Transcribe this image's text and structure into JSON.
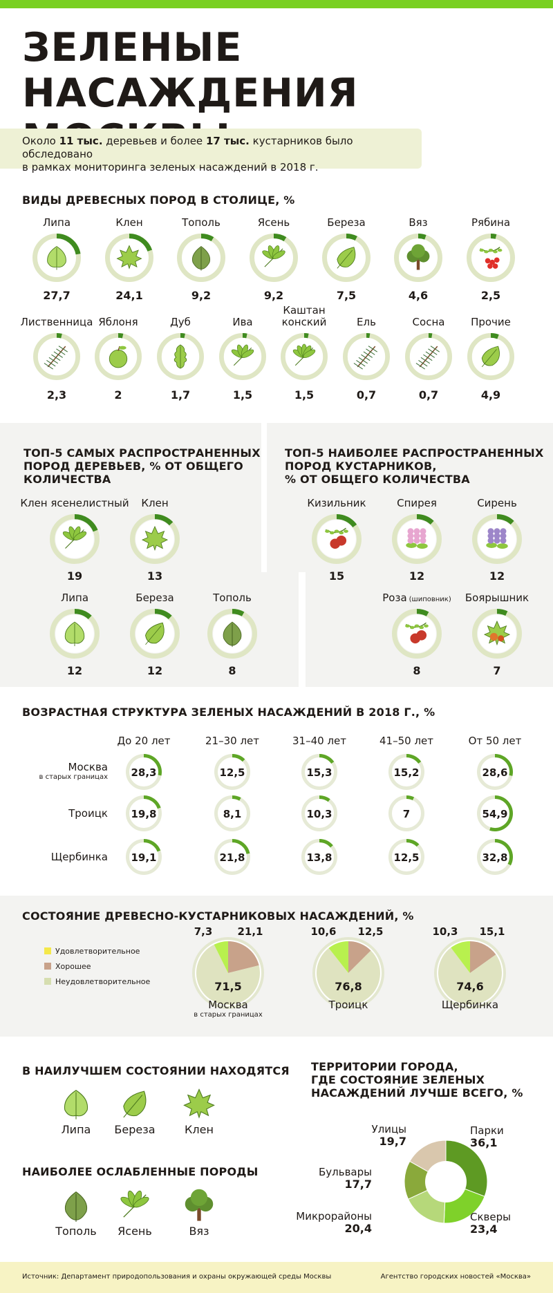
{
  "header": {
    "title_line1": "ЗЕЛЕНЫЕ НАСАЖДЕНИЯ",
    "title_line2": "МОСКВЫ",
    "intro_pre": "Около ",
    "intro_b1": "11 тыс.",
    "intro_mid": " деревьев и более ",
    "intro_b2": "17 тыс.",
    "intro_post": " кустарников было обследовано",
    "intro_line2": "в рамках мониторинга зеленых насаждений в 2018 г."
  },
  "colors": {
    "accent": "#79d021",
    "ring_bg": "#dfe6c4",
    "dark_green": "#3f8b1f",
    "brown": "#c8a28a",
    "yellow_green": "#b4ec55",
    "light_green": "#d6deb0"
  },
  "chart_data": [
    {
      "type": "table",
      "title": "ВИДЫ ДРЕВЕСНЫХ ПОРОД В СТОЛИЦЕ, %",
      "rows": [
        [
          {
            "name": "Липа",
            "value": 27.7,
            "label": "27,7",
            "icon": "linden-leaf-icon"
          },
          {
            "name": "Клен",
            "value": 24.1,
            "label": "24,1",
            "icon": "maple-leaf-icon"
          },
          {
            "name": "Тополь",
            "value": 9.2,
            "label": "9,2",
            "icon": "poplar-leaf-icon"
          },
          {
            "name": "Ясень",
            "value": 9.2,
            "label": "9,2",
            "icon": "ash-leaf-icon"
          },
          {
            "name": "Береза",
            "value": 7.5,
            "label": "7,5",
            "icon": "birch-leaf-icon"
          },
          {
            "name": "Вяз",
            "value": 4.6,
            "label": "4,6",
            "icon": "elm-tree-icon"
          },
          {
            "name": "Рябина",
            "value": 2.5,
            "label": "2,5",
            "icon": "rowan-icon"
          }
        ],
        [
          {
            "name": "Лиственница",
            "value": 2.3,
            "label": "2,3",
            "icon": "larch-icon"
          },
          {
            "name": "Яблоня",
            "value": 2,
            "label": "2",
            "icon": "apple-icon"
          },
          {
            "name": "Дуб",
            "value": 1.7,
            "label": "1,7",
            "icon": "oak-leaf-icon"
          },
          {
            "name": "Ива",
            "value": 1.5,
            "label": "1,5",
            "icon": "willow-leaf-icon"
          },
          {
            "name": "Каштан конский",
            "name_l1": "Каштан",
            "name_l2": "конский",
            "value": 1.5,
            "label": "1,5",
            "icon": "chestnut-leaf-icon"
          },
          {
            "name": "Ель",
            "value": 0.7,
            "label": "0,7",
            "icon": "spruce-icon"
          },
          {
            "name": "Сосна",
            "value": 0.7,
            "label": "0,7",
            "icon": "pine-icon"
          },
          {
            "name": "Прочие",
            "value": 4.9,
            "label": "4,9",
            "icon": "generic-leaf-icon"
          }
        ]
      ]
    },
    {
      "type": "table",
      "title_l1": "ТОП-5 САМЫХ РАСПРОСТРАНЕННЫХ",
      "title_l2": "ПОРОД ДЕРЕВЬЕВ, % ОТ ОБЩЕГО",
      "title_l3": "КОЛИЧЕСТВА",
      "items": [
        {
          "name": "Клен ясенелистный",
          "value": 19,
          "label": "19",
          "icon": "boxelder-leaf-icon"
        },
        {
          "name": "Клен",
          "value": 13,
          "label": "13",
          "icon": "maple-leaf-icon"
        },
        {
          "name": "Липа",
          "value": 12,
          "label": "12",
          "icon": "linden-leaf-icon"
        },
        {
          "name": "Береза",
          "value": 12,
          "label": "12",
          "icon": "birch-leaf-icon"
        },
        {
          "name": "Тополь",
          "value": 8,
          "label": "8",
          "icon": "poplar-leaf-icon"
        }
      ]
    },
    {
      "type": "table",
      "title_l1": "ТОП-5 НАИБОЛЕЕ РАСПРОСТРАНЕННЫХ",
      "title_l2": "ПОРОД КУСТАРНИКОВ,",
      "title_l3": "% ОТ ОБЩЕГО КОЛИЧЕСТВА",
      "items": [
        {
          "name": "Кизильник",
          "value": 15,
          "label": "15",
          "icon": "cotoneaster-icon"
        },
        {
          "name": "Спирея",
          "value": 12,
          "label": "12",
          "icon": "spiraea-icon"
        },
        {
          "name": "Сирень",
          "value": 12,
          "label": "12",
          "icon": "lilac-icon"
        },
        {
          "name": "Роза",
          "note": "(шиповник)",
          "value": 8,
          "label": "8",
          "icon": "rosehip-icon"
        },
        {
          "name": "Боярышник",
          "value": 7,
          "label": "7",
          "icon": "hawthorn-icon"
        }
      ]
    },
    {
      "type": "table",
      "title": "ВОЗРАСТНАЯ СТРУКТУРА ЗЕЛЕНЫХ НАСАЖДЕНИЙ В 2018 Г., %",
      "columns": [
        "До 20 лет",
        "21–30 лет",
        "31–40 лет",
        "41–50 лет",
        "От 50 лет"
      ],
      "rows": [
        {
          "name": "Москва",
          "sub": "в старых границах",
          "values": [
            28.3,
            12.5,
            15.3,
            15.2,
            28.6
          ],
          "labels": [
            "28,3",
            "12,5",
            "15,3",
            "15,2",
            "28,6"
          ]
        },
        {
          "name": "Троицк",
          "sub": "",
          "values": [
            19.8,
            8.1,
            10.3,
            7,
            54.9
          ],
          "labels": [
            "19,8",
            "8,1",
            "10,3",
            "7",
            "54,9"
          ]
        },
        {
          "name": "Щербинка",
          "sub": "",
          "values": [
            19.1,
            21.8,
            13.8,
            12.5,
            32.8
          ],
          "labels": [
            "19,1",
            "21,8",
            "13,8",
            "12,5",
            "32,8"
          ]
        }
      ]
    },
    {
      "type": "pie",
      "title": "СОСТОЯНИЕ ДРЕВЕСНО-КУСТАРНИКОВЫХ НАСАЖДЕНИЙ, %",
      "legend": [
        {
          "name": "Удовлетворительное",
          "color": "#f4e84a"
        },
        {
          "name": "Хорошее",
          "color": "#c8a28a"
        },
        {
          "name": "Неудовлетворительное",
          "color": "#d6deb0"
        }
      ],
      "pies": [
        {
          "name": "Москва",
          "sub": "в старых границах",
          "big": 71.5,
          "big_label": "71,5",
          "brown": 21.1,
          "brown_label": "21,1",
          "yellow": 7.3,
          "yellow_label": "7,3"
        },
        {
          "name": "Троицк",
          "sub": "",
          "big": 76.8,
          "big_label": "76,8",
          "brown": 12.5,
          "brown_label": "12,5",
          "yellow": 10.6,
          "yellow_label": "10,6"
        },
        {
          "name": "Щербинка",
          "sub": "",
          "big": 74.6,
          "big_label": "74,6",
          "brown": 15.1,
          "brown_label": "15,1",
          "yellow": 10.3,
          "yellow_label": "10,3"
        }
      ]
    },
    {
      "type": "pie",
      "title_l1": "ТЕРРИТОРИИ ГОРОДА,",
      "title_l2": "ГДЕ СОСТОЯНИЕ ЗЕЛЕНЫХ",
      "title_l3": "НАСАЖДЕНИЙ ЛУЧШЕ ВСЕГО, %",
      "slices": [
        {
          "name": "Парки",
          "value": 36.1,
          "label": "36,1",
          "color": "#5e9a23"
        },
        {
          "name": "Скверы",
          "value": 23.4,
          "label": "23,4",
          "color": "#7fd12a"
        },
        {
          "name": "Микрорайоны",
          "value": 20.4,
          "label": "20,4",
          "color": "#b6d87a"
        },
        {
          "name": "Бульвары",
          "value": 17.7,
          "label": "17,7",
          "color": "#8aa93b"
        },
        {
          "name": "Улицы",
          "value": 19.7,
          "label": "19,7",
          "color": "#d9c7ad"
        }
      ]
    }
  ],
  "best": {
    "title": "В НАИЛУЧШЕМ СОСТОЯНИИ НАХОДЯТСЯ",
    "items": [
      {
        "name": "Липа",
        "icon": "linden-leaf-icon"
      },
      {
        "name": "Береза",
        "icon": "birch-leaf-icon"
      },
      {
        "name": "Клен",
        "icon": "maple-leaf-icon"
      }
    ]
  },
  "weak": {
    "title": "НАИБОЛЕЕ ОСЛАБЛЕННЫЕ ПОРОДЫ",
    "items": [
      {
        "name": "Тополь",
        "icon": "poplar-leaf-icon"
      },
      {
        "name": "Ясень",
        "icon": "ash-leaf-icon"
      },
      {
        "name": "Вяз",
        "icon": "elm-tree-icon"
      }
    ]
  },
  "footer": {
    "source": "Источник: Департамент природопользования и охраны окружающей среды Москвы",
    "agency": "Агентство городских новостей «Москва»"
  }
}
